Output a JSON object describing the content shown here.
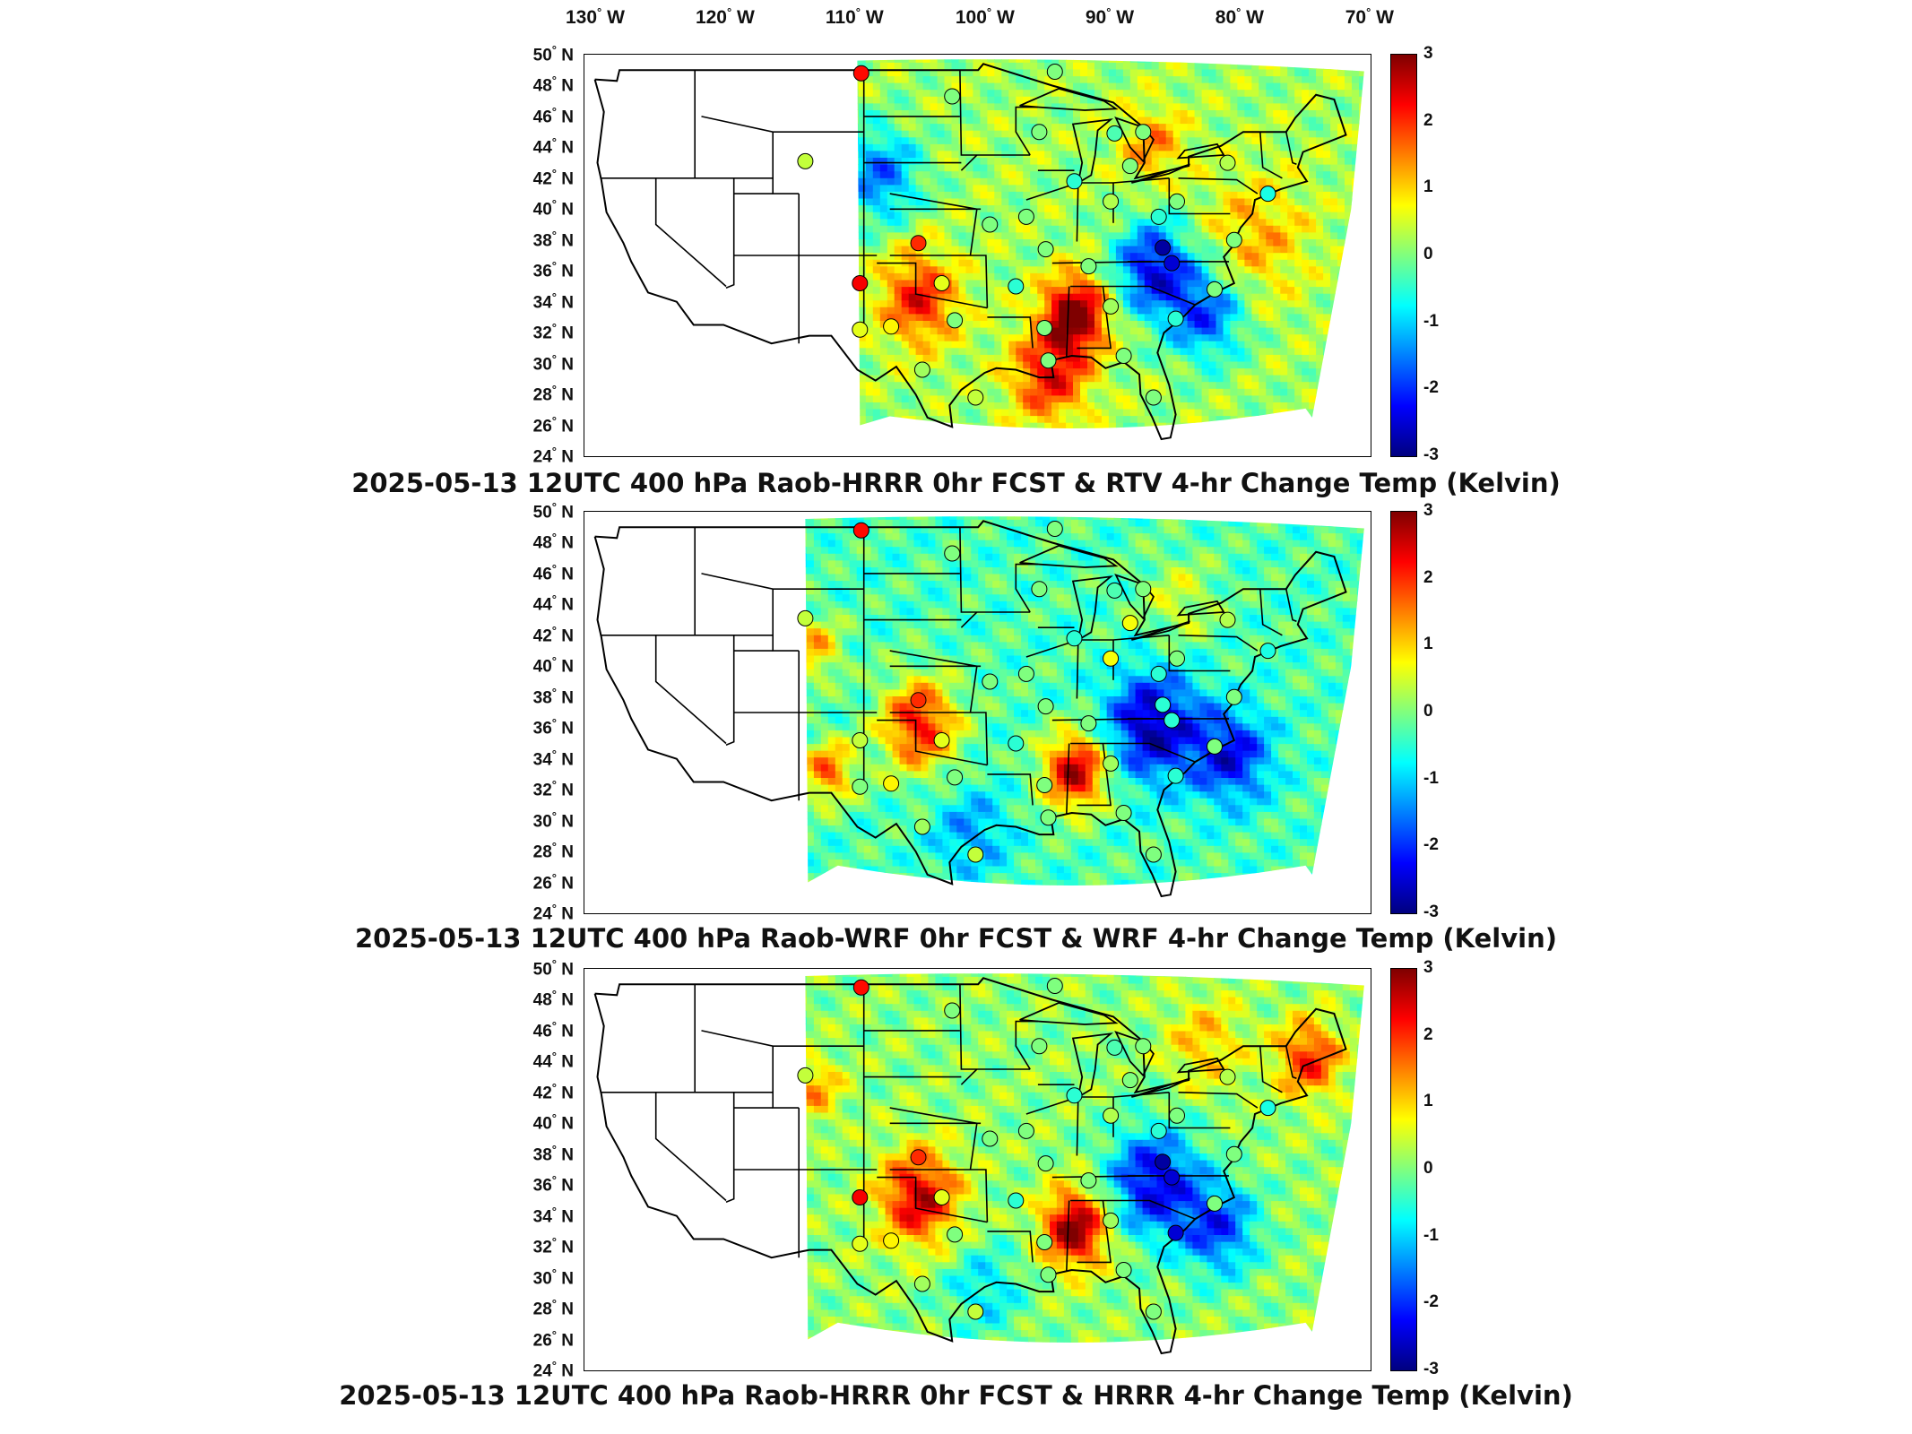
{
  "lon_labels": [
    "130",
    "120",
    "110",
    "100",
    "90",
    "80",
    "70"
  ],
  "lon_suffix": "W",
  "lat_suffix": "N",
  "lat_labels": [
    "50",
    "48",
    "46",
    "44",
    "42",
    "40",
    "38",
    "36",
    "34",
    "32",
    "30",
    "28",
    "26",
    "24"
  ],
  "colorbar": {
    "min": -3,
    "max": 3,
    "ticks": [
      "3",
      "2",
      "1",
      "0",
      "-1",
      "-2",
      "-3"
    ],
    "colors": [
      "#7f0000",
      "#ff0000",
      "#ff7f00",
      "#ffff00",
      "#7fff7f",
      "#00ffff",
      "#007fff",
      "#0000ff",
      "#00007f"
    ]
  },
  "panels": [
    {
      "caption": "2025-05-13 12UTC 400 hPa Raob-HRRR 0hr FCST & RTV 4-hr Change Temp (Kelvin)",
      "stations": [
        {
          "lon": -104.2,
          "lat": 48.8,
          "value": 2.2
        },
        {
          "lon": -97.2,
          "lat": 47.3,
          "value": 0.0
        },
        {
          "lon": -89.3,
          "lat": 48.9,
          "value": 0.0
        },
        {
          "lon": -90.5,
          "lat": 45.0,
          "value": 0.0
        },
        {
          "lon": -108.5,
          "lat": 43.1,
          "value": 0.4
        },
        {
          "lon": -84.7,
          "lat": 44.9,
          "value": -0.3
        },
        {
          "lon": -82.5,
          "lat": 45.0,
          "value": 0.0
        },
        {
          "lon": -83.5,
          "lat": 42.8,
          "value": 0.0
        },
        {
          "lon": -87.8,
          "lat": 41.8,
          "value": -0.5
        },
        {
          "lon": -91.5,
          "lat": 39.5,
          "value": 0.0
        },
        {
          "lon": -85.0,
          "lat": 40.5,
          "value": 0.3
        },
        {
          "lon": -79.9,
          "lat": 40.5,
          "value": 0.0
        },
        {
          "lon": -81.3,
          "lat": 39.5,
          "value": -0.5
        },
        {
          "lon": -99.8,
          "lat": 37.8,
          "value": 2.0
        },
        {
          "lon": -94.3,
          "lat": 39.0,
          "value": 0.0
        },
        {
          "lon": -90.0,
          "lat": 37.4,
          "value": 0.0
        },
        {
          "lon": -81.0,
          "lat": 37.5,
          "value": -2.8
        },
        {
          "lon": -80.3,
          "lat": 36.5,
          "value": -2.5
        },
        {
          "lon": -104.3,
          "lat": 35.2,
          "value": 2.3
        },
        {
          "lon": -98.0,
          "lat": 35.2,
          "value": 0.6
        },
        {
          "lon": -92.3,
          "lat": 35.0,
          "value": -0.5
        },
        {
          "lon": -86.7,
          "lat": 36.3,
          "value": 0.0
        },
        {
          "lon": -85.0,
          "lat": 33.7,
          "value": 0.2
        },
        {
          "lon": -90.1,
          "lat": 32.3,
          "value": 0.0
        },
        {
          "lon": -97.0,
          "lat": 32.8,
          "value": 0.0
        },
        {
          "lon": -101.9,
          "lat": 32.4,
          "value": 0.8
        },
        {
          "lon": -104.3,
          "lat": 32.2,
          "value": 0.6
        },
        {
          "lon": -99.5,
          "lat": 29.6,
          "value": 0.2
        },
        {
          "lon": -95.4,
          "lat": 27.8,
          "value": 0.4
        },
        {
          "lon": -89.8,
          "lat": 30.2,
          "value": 0.0
        },
        {
          "lon": -84.0,
          "lat": 30.5,
          "value": 0.0
        },
        {
          "lon": -81.7,
          "lat": 27.8,
          "value": 0.0
        },
        {
          "lon": -80.0,
          "lat": 32.9,
          "value": -0.5
        },
        {
          "lon": -77.0,
          "lat": 34.8,
          "value": 0.0
        },
        {
          "lon": -75.5,
          "lat": 38.0,
          "value": 0.0
        },
        {
          "lon": -72.9,
          "lat": 41.0,
          "value": -0.6
        },
        {
          "lon": -76.0,
          "lat": 43.0,
          "value": 0.3
        }
      ],
      "field": {
        "bias": 0.2,
        "blobs": [
          {
            "lon": -88.0,
            "lat": 33.0,
            "value": 3.0,
            "r": 2.5
          },
          {
            "lon": -100.0,
            "lat": 34.0,
            "value": 2.0,
            "r": 3.0
          },
          {
            "lon": -90.0,
            "lat": 29.0,
            "value": 2.0,
            "r": 3.0
          },
          {
            "lon": -82.0,
            "lat": 36.0,
            "value": -2.5,
            "r": 3.0
          },
          {
            "lon": -78.0,
            "lat": 33.0,
            "value": -2.0,
            "r": 3.0
          },
          {
            "lon": -103.0,
            "lat": 42.0,
            "value": -1.8,
            "r": 3.0
          },
          {
            "lon": -74.0,
            "lat": 38.0,
            "value": 1.0,
            "r": 4.0
          },
          {
            "lon": -82.0,
            "lat": 44.0,
            "value": 1.2,
            "r": 2.5
          }
        ]
      }
    },
    {
      "caption": "2025-05-13 12UTC 400 hPa Raob-WRF 0hr FCST & WRF 4-hr Change Temp (Kelvin)",
      "stations": [
        {
          "lon": -104.2,
          "lat": 48.8,
          "value": 2.2
        },
        {
          "lon": -97.2,
          "lat": 47.3,
          "value": 0.0
        },
        {
          "lon": -89.3,
          "lat": 48.9,
          "value": 0.0
        },
        {
          "lon": -90.5,
          "lat": 45.0,
          "value": 0.0
        },
        {
          "lon": -108.5,
          "lat": 43.1,
          "value": 0.4
        },
        {
          "lon": -84.7,
          "lat": 44.9,
          "value": -0.3
        },
        {
          "lon": -82.5,
          "lat": 45.0,
          "value": 0.0
        },
        {
          "lon": -83.5,
          "lat": 42.8,
          "value": 0.7
        },
        {
          "lon": -87.8,
          "lat": 41.8,
          "value": -0.5
        },
        {
          "lon": -91.5,
          "lat": 39.5,
          "value": 0.0
        },
        {
          "lon": -85.0,
          "lat": 40.5,
          "value": 0.7
        },
        {
          "lon": -79.9,
          "lat": 40.5,
          "value": 0.0
        },
        {
          "lon": -81.3,
          "lat": 39.5,
          "value": -0.5
        },
        {
          "lon": -99.8,
          "lat": 37.8,
          "value": 2.0
        },
        {
          "lon": -94.3,
          "lat": 39.0,
          "value": 0.0
        },
        {
          "lon": -90.0,
          "lat": 37.4,
          "value": 0.0
        },
        {
          "lon": -81.0,
          "lat": 37.5,
          "value": -0.5
        },
        {
          "lon": -80.3,
          "lat": 36.5,
          "value": -0.5
        },
        {
          "lon": -104.3,
          "lat": 35.2,
          "value": 0.4
        },
        {
          "lon": -98.0,
          "lat": 35.2,
          "value": 0.6
        },
        {
          "lon": -92.3,
          "lat": 35.0,
          "value": -0.5
        },
        {
          "lon": -86.7,
          "lat": 36.3,
          "value": 0.0
        },
        {
          "lon": -85.0,
          "lat": 33.7,
          "value": 0.2
        },
        {
          "lon": -90.1,
          "lat": 32.3,
          "value": 0.0
        },
        {
          "lon": -97.0,
          "lat": 32.8,
          "value": 0.0
        },
        {
          "lon": -101.9,
          "lat": 32.4,
          "value": 0.8
        },
        {
          "lon": -104.3,
          "lat": 32.2,
          "value": 0.0
        },
        {
          "lon": -99.5,
          "lat": 29.6,
          "value": 0.2
        },
        {
          "lon": -95.4,
          "lat": 27.8,
          "value": 0.4
        },
        {
          "lon": -89.8,
          "lat": 30.2,
          "value": 0.0
        },
        {
          "lon": -84.0,
          "lat": 30.5,
          "value": 0.0
        },
        {
          "lon": -81.7,
          "lat": 27.8,
          "value": 0.0
        },
        {
          "lon": -80.0,
          "lat": 32.9,
          "value": -0.5
        },
        {
          "lon": -77.0,
          "lat": 34.8,
          "value": 0.0
        },
        {
          "lon": -75.5,
          "lat": 38.0,
          "value": 0.0
        },
        {
          "lon": -72.9,
          "lat": 41.0,
          "value": -0.6
        },
        {
          "lon": -76.0,
          "lat": 43.0,
          "value": 0.3
        }
      ],
      "field": {
        "bias": -0.3,
        "blobs": [
          {
            "lon": -88.0,
            "lat": 33.0,
            "value": 3.0,
            "r": 2.5
          },
          {
            "lon": -100.0,
            "lat": 36.0,
            "value": 2.5,
            "r": 3.0
          },
          {
            "lon": -107.0,
            "lat": 33.0,
            "value": 2.0,
            "r": 2.0
          },
          {
            "lon": -82.0,
            "lat": 36.0,
            "value": -2.5,
            "r": 3.5
          },
          {
            "lon": -76.0,
            "lat": 34.0,
            "value": -2.0,
            "r": 3.0
          },
          {
            "lon": -108.0,
            "lat": 41.0,
            "value": 1.5,
            "r": 2.0
          },
          {
            "lon": -80.0,
            "lat": 44.0,
            "value": 0.8,
            "r": 3.0
          },
          {
            "lon": -96.0,
            "lat": 29.0,
            "value": -1.0,
            "r": 3.0
          }
        ]
      }
    },
    {
      "caption": "2025-05-13 12UTC 400 hPa Raob-HRRR 0hr FCST & HRRR 4-hr Change Temp (Kelvin)",
      "stations": [
        {
          "lon": -104.2,
          "lat": 48.8,
          "value": 2.2
        },
        {
          "lon": -97.2,
          "lat": 47.3,
          "value": 0.0
        },
        {
          "lon": -89.3,
          "lat": 48.9,
          "value": 0.0
        },
        {
          "lon": -90.5,
          "lat": 45.0,
          "value": 0.0
        },
        {
          "lon": -108.5,
          "lat": 43.1,
          "value": 0.4
        },
        {
          "lon": -84.7,
          "lat": 44.9,
          "value": -0.3
        },
        {
          "lon": -82.5,
          "lat": 45.0,
          "value": 0.0
        },
        {
          "lon": -83.5,
          "lat": 42.8,
          "value": 0.0
        },
        {
          "lon": -87.8,
          "lat": 41.8,
          "value": -0.5
        },
        {
          "lon": -91.5,
          "lat": 39.5,
          "value": 0.0
        },
        {
          "lon": -85.0,
          "lat": 40.5,
          "value": 0.3
        },
        {
          "lon": -79.9,
          "lat": 40.5,
          "value": 0.0
        },
        {
          "lon": -81.3,
          "lat": 39.5,
          "value": -0.5
        },
        {
          "lon": -99.8,
          "lat": 37.8,
          "value": 2.0
        },
        {
          "lon": -94.3,
          "lat": 39.0,
          "value": 0.0
        },
        {
          "lon": -90.0,
          "lat": 37.4,
          "value": 0.0
        },
        {
          "lon": -81.0,
          "lat": 37.5,
          "value": -2.8
        },
        {
          "lon": -80.3,
          "lat": 36.5,
          "value": -2.5
        },
        {
          "lon": -104.3,
          "lat": 35.2,
          "value": 2.3
        },
        {
          "lon": -98.0,
          "lat": 35.2,
          "value": 0.6
        },
        {
          "lon": -92.3,
          "lat": 35.0,
          "value": -0.5
        },
        {
          "lon": -86.7,
          "lat": 36.3,
          "value": 0.0
        },
        {
          "lon": -85.0,
          "lat": 33.7,
          "value": 0.2
        },
        {
          "lon": -90.1,
          "lat": 32.3,
          "value": 0.0
        },
        {
          "lon": -97.0,
          "lat": 32.8,
          "value": 0.0
        },
        {
          "lon": -101.9,
          "lat": 32.4,
          "value": 0.8
        },
        {
          "lon": -104.3,
          "lat": 32.2,
          "value": 0.6
        },
        {
          "lon": -99.5,
          "lat": 29.6,
          "value": 0.2
        },
        {
          "lon": -95.4,
          "lat": 27.8,
          "value": 0.4
        },
        {
          "lon": -89.8,
          "lat": 30.2,
          "value": 0.0
        },
        {
          "lon": -84.0,
          "lat": 30.5,
          "value": 0.0
        },
        {
          "lon": -81.7,
          "lat": 27.8,
          "value": 0.0
        },
        {
          "lon": -80.0,
          "lat": 32.9,
          "value": -2.5
        },
        {
          "lon": -77.0,
          "lat": 34.8,
          "value": 0.0
        },
        {
          "lon": -75.5,
          "lat": 38.0,
          "value": 0.0
        },
        {
          "lon": -72.9,
          "lat": 41.0,
          "value": -0.6
        },
        {
          "lon": -76.0,
          "lat": 43.0,
          "value": 0.3
        }
      ],
      "field": {
        "bias": 0.1,
        "blobs": [
          {
            "lon": -88.0,
            "lat": 33.0,
            "value": 3.0,
            "r": 2.5
          },
          {
            "lon": -100.0,
            "lat": 35.0,
            "value": 2.5,
            "r": 3.0
          },
          {
            "lon": -82.0,
            "lat": 36.0,
            "value": -2.5,
            "r": 3.5
          },
          {
            "lon": -77.0,
            "lat": 33.0,
            "value": -2.0,
            "r": 3.0
          },
          {
            "lon": -108.0,
            "lat": 42.0,
            "value": 1.2,
            "r": 2.0
          },
          {
            "lon": -70.0,
            "lat": 44.0,
            "value": 2.0,
            "r": 2.5
          },
          {
            "lon": -95.0,
            "lat": 29.0,
            "value": -1.0,
            "r": 3.0
          },
          {
            "lon": -78.0,
            "lat": 45.0,
            "value": 1.0,
            "r": 3.0
          }
        ]
      }
    }
  ]
}
